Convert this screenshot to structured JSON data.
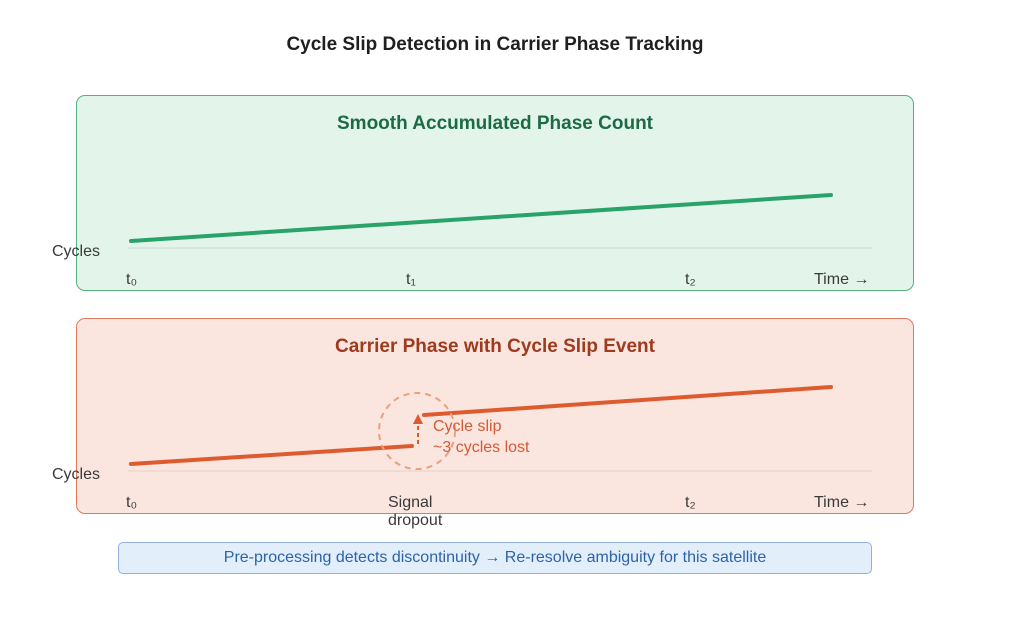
{
  "title": "Cycle Slip Detection in Carrier Phase Tracking",
  "top_panel": {
    "title": "Smooth Accumulated Phase Count",
    "y_label": "Cycles",
    "ticks": [
      "t₀",
      "t₁",
      "t₂"
    ],
    "time_label": "Time →",
    "colors": {
      "line": "#2aa36b",
      "fill": "#e3f4ea",
      "border": "#58b07f"
    }
  },
  "bottom_panel": {
    "title": "Carrier Phase with Cycle Slip Event",
    "y_label": "Cycles",
    "ticks": [
      "t₀",
      "t₂"
    ],
    "time_label": "Time →",
    "dropout_label_1": "Signal",
    "dropout_label_2": "dropout",
    "slip_label_1": "Cycle slip",
    "slip_label_2": "~3 cycles lost",
    "colors": {
      "line": "#de5b30",
      "fill": "#fae5df",
      "border": "#e07a5f"
    }
  },
  "banner": "Pre-processing detects discontinuity → Re-resolve ambiguity for this satellite"
}
